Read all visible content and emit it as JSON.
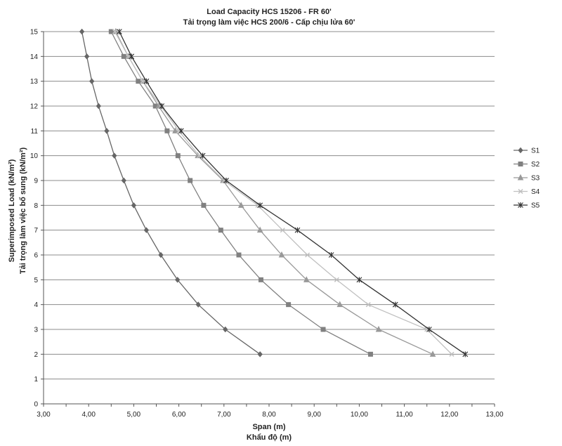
{
  "chart_data": {
    "type": "line",
    "title": "Load Capacity HCS 15206 - FR 60'",
    "subtitle": "Tải trọng làm việc HCS 200/6 - Cấp chịu lửa 60'",
    "xlabel": "Span (m)",
    "xlabel2": "Khẩu độ (m)",
    "ylabel": "Superimposed Load (kN/m²)",
    "ylabel2": "Tải trọng làm việc bổ sung (kN/m²)",
    "xlim": [
      3,
      13
    ],
    "ylim": [
      0,
      15
    ],
    "x_ticks": [
      "3,00",
      "4,00",
      "5,00",
      "6,00",
      "7,00",
      "8,00",
      "9,00",
      "10,00",
      "11,00",
      "12,00",
      "13,00"
    ],
    "y_ticks": [
      "0",
      "1",
      "2",
      "3",
      "4",
      "5",
      "6",
      "7",
      "8",
      "9",
      "10",
      "11",
      "12",
      "13",
      "14",
      "15"
    ],
    "grid": true,
    "legend_position": "right",
    "series": [
      {
        "name": "S1",
        "color": "#666666",
        "marker": "diamond",
        "points": [
          [
            7.8,
            2
          ],
          [
            7.03,
            3
          ],
          [
            6.43,
            4
          ],
          [
            5.97,
            5
          ],
          [
            5.6,
            6
          ],
          [
            5.28,
            7
          ],
          [
            5.0,
            8
          ],
          [
            4.78,
            9
          ],
          [
            4.57,
            10
          ],
          [
            4.4,
            11
          ],
          [
            4.22,
            12
          ],
          [
            4.07,
            13
          ],
          [
            3.96,
            14
          ],
          [
            3.85,
            15
          ]
        ]
      },
      {
        "name": "S2",
        "color": "#808080",
        "marker": "square",
        "points": [
          [
            10.25,
            2
          ],
          [
            9.2,
            3
          ],
          [
            8.43,
            4
          ],
          [
            7.82,
            5
          ],
          [
            7.33,
            6
          ],
          [
            6.93,
            7
          ],
          [
            6.55,
            8
          ],
          [
            6.25,
            9
          ],
          [
            5.98,
            10
          ],
          [
            5.74,
            11
          ],
          [
            5.48,
            12
          ],
          [
            5.1,
            13
          ],
          [
            4.78,
            14
          ],
          [
            4.5,
            15
          ]
        ]
      },
      {
        "name": "S3",
        "color": "#999999",
        "marker": "triangle",
        "points": [
          [
            11.63,
            2
          ],
          [
            10.43,
            3
          ],
          [
            9.57,
            4
          ],
          [
            8.83,
            5
          ],
          [
            8.28,
            6
          ],
          [
            7.8,
            7
          ],
          [
            7.38,
            8
          ],
          [
            6.98,
            9
          ],
          [
            6.42,
            10
          ],
          [
            5.92,
            11
          ],
          [
            5.55,
            12
          ],
          [
            5.2,
            13
          ],
          [
            4.88,
            14
          ],
          [
            4.6,
            15
          ]
        ]
      },
      {
        "name": "S4",
        "color": "#c0c0c0",
        "marker": "x",
        "points": [
          [
            12.05,
            2
          ],
          [
            11.5,
            3
          ],
          [
            10.2,
            4
          ],
          [
            9.5,
            5
          ],
          [
            8.85,
            6
          ],
          [
            8.3,
            7
          ],
          [
            7.75,
            8
          ],
          [
            7.0,
            9
          ],
          [
            6.45,
            10
          ],
          [
            6.0,
            11
          ],
          [
            5.6,
            12
          ],
          [
            5.2,
            13
          ],
          [
            4.88,
            14
          ],
          [
            4.58,
            15
          ]
        ]
      },
      {
        "name": "S5",
        "color": "#333333",
        "marker": "star",
        "points": [
          [
            12.35,
            2
          ],
          [
            11.55,
            3
          ],
          [
            10.8,
            4
          ],
          [
            10.0,
            5
          ],
          [
            9.38,
            6
          ],
          [
            8.63,
            7
          ],
          [
            7.8,
            8
          ],
          [
            7.05,
            9
          ],
          [
            6.53,
            10
          ],
          [
            6.05,
            11
          ],
          [
            5.62,
            12
          ],
          [
            5.28,
            13
          ],
          [
            4.95,
            14
          ],
          [
            4.68,
            15
          ]
        ]
      }
    ]
  }
}
